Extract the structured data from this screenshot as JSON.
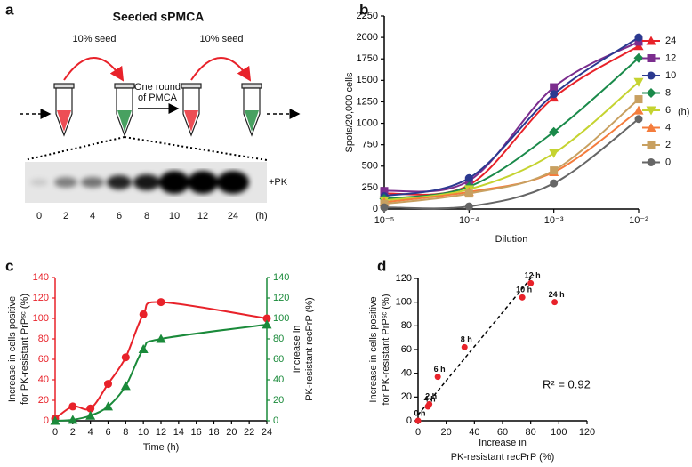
{
  "diagram": {
    "panel_label": "a",
    "title": "Seeded sPMCA",
    "seed_labels": [
      "10% seed",
      "10% seed"
    ],
    "step_label": [
      "One round",
      "of PMCA"
    ],
    "gel_label": "+PK",
    "lanes": [
      "0",
      "2",
      "4",
      "6",
      "8",
      "10",
      "12",
      "24"
    ],
    "lane_unit": "(h)"
  },
  "chart_data": [
    {
      "type": "line",
      "panel_label": "b",
      "log_x": true,
      "xlabel": "Dilution",
      "ylabel": "Spots/20,000 cells",
      "x": [
        1e-05,
        0.0001,
        0.001,
        0.01
      ],
      "xlim": [
        1e-05,
        0.01
      ],
      "xticks": [
        {
          "value": 1e-05,
          "label": "10⁻⁵"
        },
        {
          "value": 0.0001,
          "label": "10⁻⁴"
        },
        {
          "value": 0.001,
          "label": "10⁻³"
        },
        {
          "value": 0.01,
          "label": "10⁻²"
        }
      ],
      "ylim": [
        0,
        2250
      ],
      "yticks": [
        0,
        250,
        500,
        750,
        1000,
        1250,
        1500,
        1750,
        2000,
        2250
      ],
      "legend": "right",
      "legend_title": "(h)",
      "series": [
        {
          "name": "24",
          "color": "#e8222a",
          "marker": "triangle",
          "values": [
            180,
            280,
            1300,
            1900
          ]
        },
        {
          "name": "12",
          "color": "#7b2d8e",
          "marker": "square",
          "values": [
            210,
            330,
            1420,
            1950
          ]
        },
        {
          "name": "10",
          "color": "#2b3990",
          "marker": "circle",
          "values": [
            150,
            360,
            1340,
            2000
          ]
        },
        {
          "name": "8",
          "color": "#1a8a4a",
          "marker": "diamond",
          "values": [
            120,
            260,
            900,
            1760
          ]
        },
        {
          "name": "6",
          "color": "#c5d330",
          "marker": "triangle-down",
          "values": [
            100,
            230,
            650,
            1480
          ]
        },
        {
          "name": "4",
          "color": "#f47c3c",
          "marker": "triangle",
          "values": [
            80,
            200,
            430,
            1150
          ]
        },
        {
          "name": "2",
          "color": "#c8a060",
          "marker": "square",
          "values": [
            60,
            180,
            450,
            1280
          ]
        },
        {
          "name": "0",
          "color": "#666666",
          "marker": "circle",
          "values": [
            20,
            30,
            300,
            1050
          ]
        }
      ]
    },
    {
      "type": "line",
      "panel_label": "c",
      "xlabel": "Time (h)",
      "ylabel": [
        "Increase in cells positive",
        "for PK-resistant PrPˢᶜ (%)"
      ],
      "y2label": [
        "Increase in",
        "PK-resistant recPrP (%)"
      ],
      "x": [
        0,
        2,
        4,
        6,
        8,
        10,
        12,
        24
      ],
      "xlim": [
        0,
        24
      ],
      "xticks": [
        0,
        2,
        4,
        6,
        8,
        10,
        12,
        14,
        16,
        18,
        20,
        22,
        24
      ],
      "ylim": [
        0,
        140
      ],
      "yticks": [
        0,
        20,
        40,
        60,
        80,
        100,
        120,
        140
      ],
      "y2lim": [
        0,
        140
      ],
      "y2ticks": [
        0,
        20,
        40,
        60,
        80,
        100,
        120,
        140
      ],
      "series": [
        {
          "color": "#e8222a",
          "marker": "circle",
          "values": [
            2,
            14,
            12,
            36,
            62,
            104,
            116,
            100
          ]
        },
        {
          "color": "#1a8a3a",
          "marker": "triangle",
          "axis": "y2",
          "values": [
            0,
            1,
            5,
            14,
            34,
            70,
            80,
            94
          ]
        }
      ]
    },
    {
      "type": "scatter",
      "panel_label": "d",
      "xlabel": [
        "Increase in",
        "PK-resistant recPrP (%)"
      ],
      "ylabel": [
        "Increase in cells positive",
        "for PK-resistant PrPˢᶜ (%)"
      ],
      "x": [
        0,
        8,
        7,
        14,
        33,
        74,
        80,
        97
      ],
      "values": [
        0,
        14,
        12,
        37,
        62,
        104,
        116,
        100
      ],
      "point_labels": [
        "0 h",
        "2 h",
        "4 h",
        "6 h",
        "8 h",
        "10 h",
        "12 h",
        "24 h"
      ],
      "color": "#e8222a",
      "xlim": [
        0,
        120
      ],
      "xticks": [
        0,
        20,
        40,
        60,
        80,
        100,
        120
      ],
      "ylim": [
        0,
        120
      ],
      "yticks": [
        0,
        20,
        40,
        60,
        80,
        100,
        120
      ],
      "annotation": "R² = 0.92",
      "trendline": {
        "x": [
          0,
          82
        ],
        "y": [
          5,
          123
        ]
      }
    }
  ]
}
